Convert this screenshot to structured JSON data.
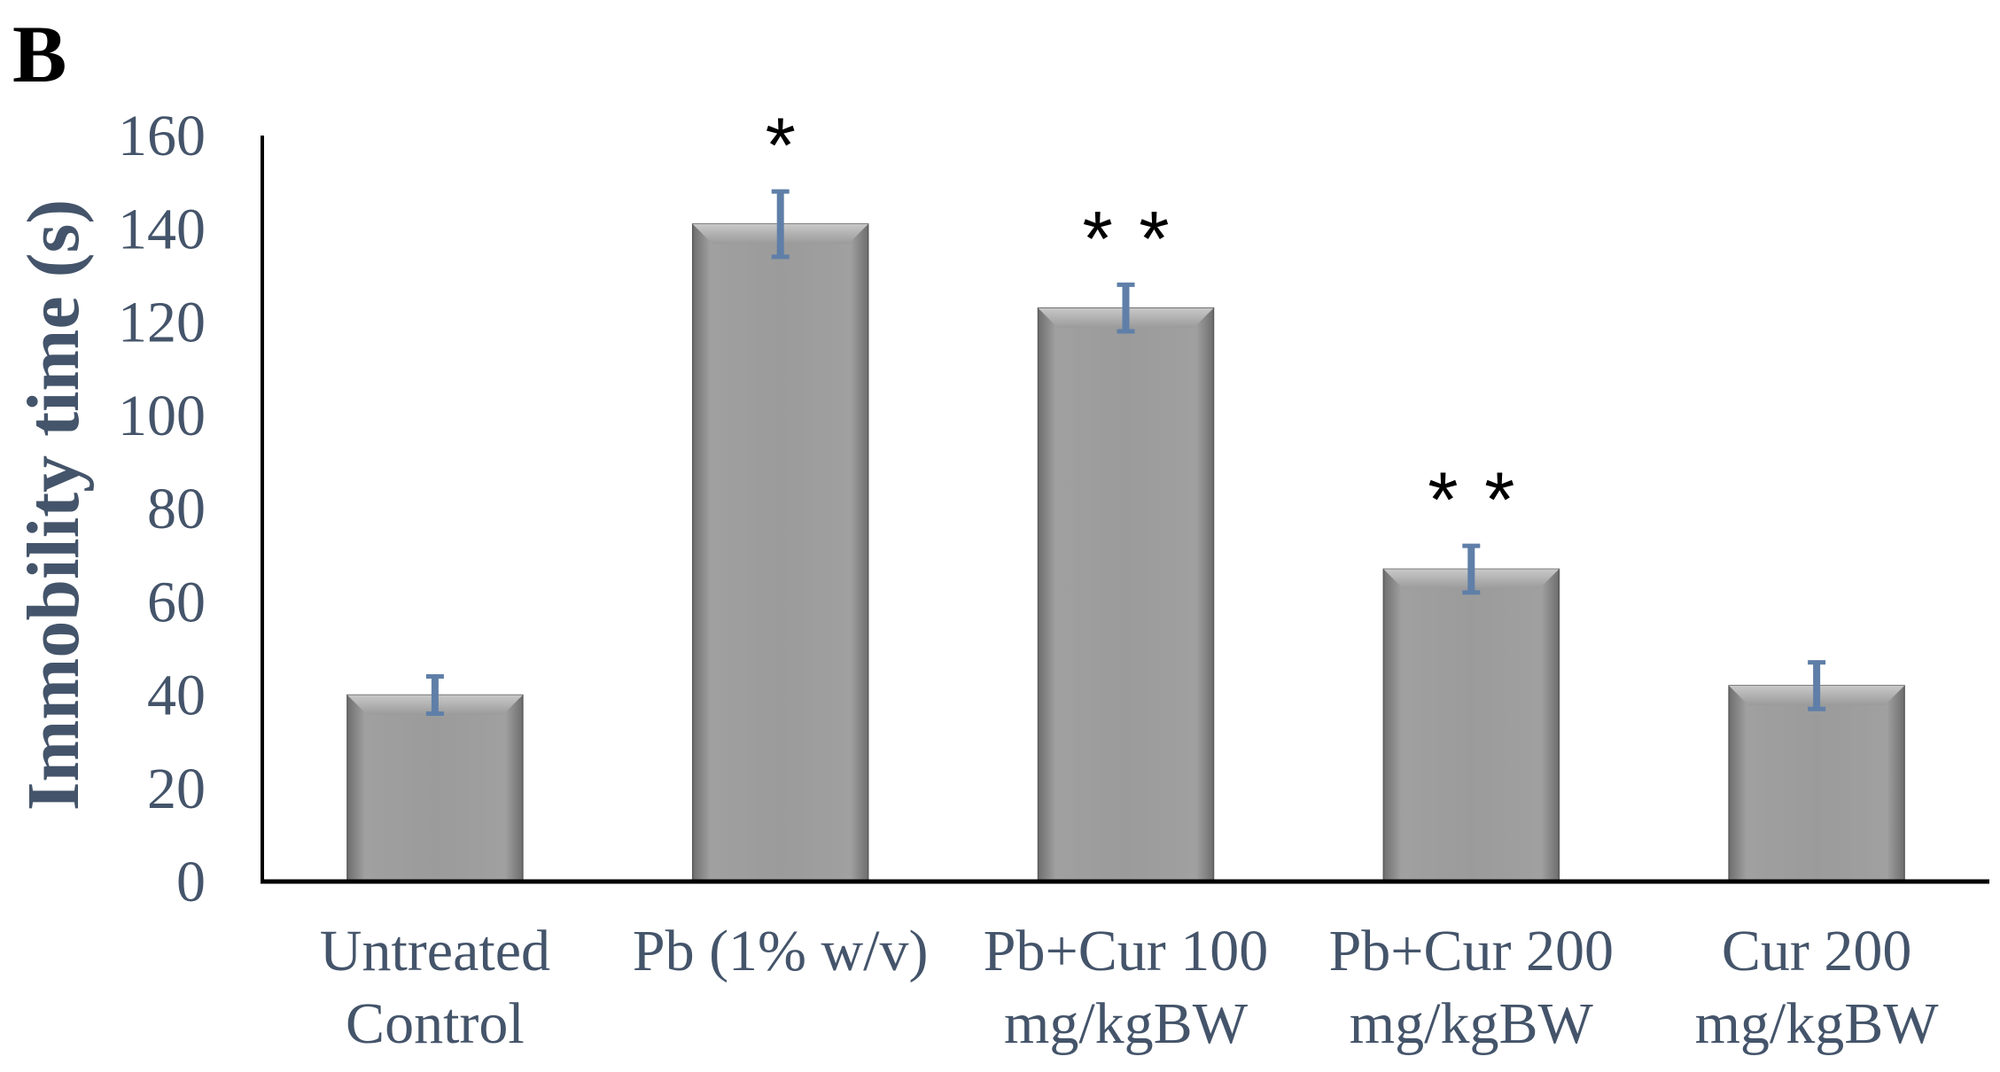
{
  "panel_label": "B",
  "chart_data": {
    "type": "bar",
    "ylabel": "Immobility time (s)",
    "xlabel": "",
    "ylim": [
      0,
      160
    ],
    "yticks": [
      0,
      20,
      40,
      60,
      80,
      100,
      120,
      140,
      160
    ],
    "grid": false,
    "categories": [
      [
        "Untreated",
        "Control"
      ],
      [
        "Pb (1% w/v)"
      ],
      [
        "Pb+Cur 100",
        "mg/kgBW"
      ],
      [
        "Pb+Cur 200",
        "mg/kgBW"
      ],
      [
        "Cur 200",
        "mg/kgBW"
      ]
    ],
    "values": [
      40,
      141,
      123,
      67,
      42
    ],
    "errors": [
      4,
      7,
      5,
      5,
      5
    ],
    "significance": [
      "",
      "*",
      "**",
      "**",
      ""
    ],
    "colors": {
      "bar": "#9a9a9a",
      "bar_dark": "#6e6e6e",
      "bar_light": "#b4b4b4",
      "error_bar": "#5f7fa8",
      "axis_text": "#44546a"
    }
  }
}
